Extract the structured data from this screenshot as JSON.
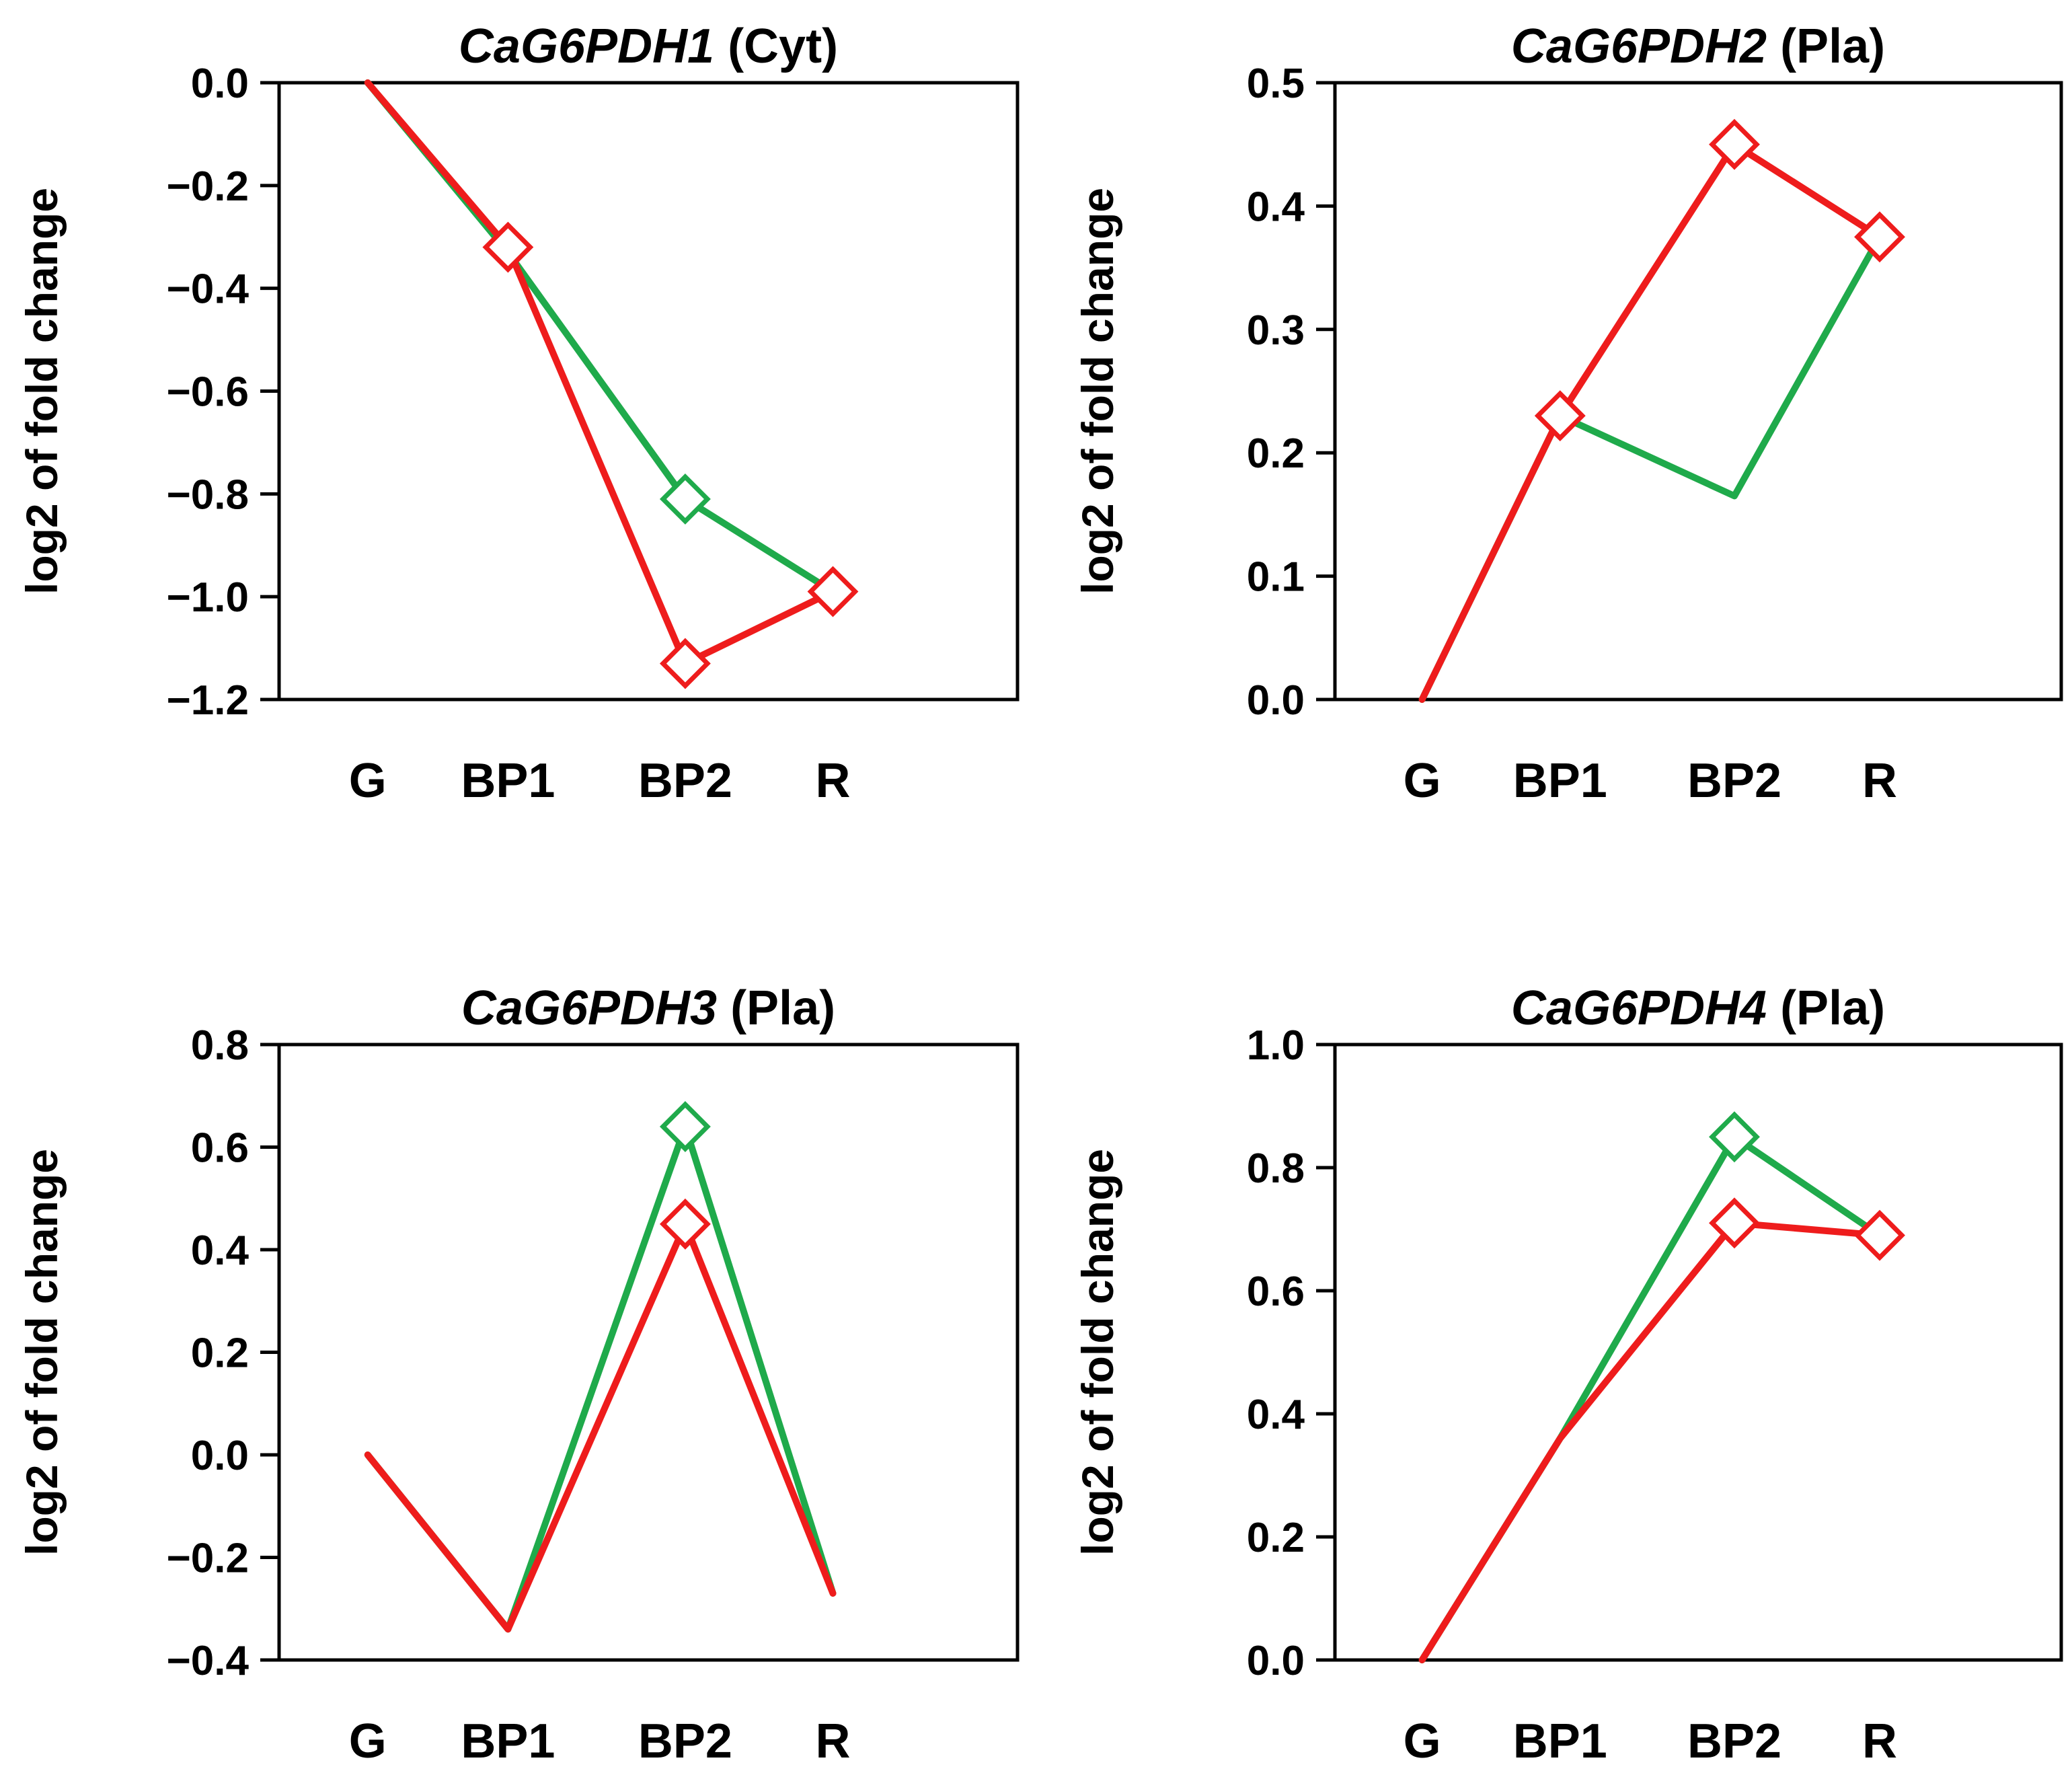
{
  "colors": {
    "red": "#ee1c1c",
    "green": "#1faa4b",
    "axis": "#000000"
  },
  "chart_data": [
    {
      "type": "line",
      "title_gene": "CaG6PDH1",
      "title_suffix": " (Cyt)",
      "xlabel": "",
      "ylabel": "log2 of fold change",
      "categories": [
        "G",
        "BP1",
        "BP2",
        "R"
      ],
      "ylim": [
        -1.2,
        0.0
      ],
      "yticks": [
        "0.0",
        "−0.2",
        "−0.4",
        "−0.6",
        "−0.8",
        "−1.0",
        "−1.2"
      ],
      "series": [
        {
          "name": "green",
          "color": "#1faa4b",
          "values": [
            0.0,
            -0.33,
            -0.81,
            -0.99
          ],
          "markers": [
            false,
            false,
            true,
            false
          ]
        },
        {
          "name": "red",
          "color": "#ee1c1c",
          "values": [
            0.0,
            -0.32,
            -1.13,
            -0.99
          ],
          "markers": [
            false,
            true,
            true,
            true
          ]
        }
      ]
    },
    {
      "type": "line",
      "title_gene": "CaG6PDH2",
      "title_suffix": " (Pla)",
      "xlabel": "",
      "ylabel": "log2 of fold change",
      "categories": [
        "G",
        "BP1",
        "BP2",
        "R"
      ],
      "ylim": [
        0.0,
        0.5
      ],
      "yticks": [
        "0.5",
        "0.4",
        "0.3",
        "0.2",
        "0.1",
        "0.0"
      ],
      "series": [
        {
          "name": "green",
          "color": "#1faa4b",
          "values": [
            0.0,
            0.23,
            0.165,
            0.375
          ],
          "markers": [
            false,
            false,
            false,
            false
          ]
        },
        {
          "name": "red",
          "color": "#ee1c1c",
          "values": [
            0.0,
            0.23,
            0.45,
            0.375
          ],
          "markers": [
            false,
            true,
            true,
            true
          ]
        }
      ]
    },
    {
      "type": "line",
      "title_gene": "CaG6PDH3",
      "title_suffix": " (Pla)",
      "xlabel": "",
      "ylabel": "log2 of fold change",
      "categories": [
        "G",
        "BP1",
        "BP2",
        "R"
      ],
      "ylim": [
        -0.4,
        0.8
      ],
      "yticks": [
        "0.8",
        "0.6",
        "0.4",
        "0.2",
        "0.0",
        "−0.2",
        "−0.4"
      ],
      "series": [
        {
          "name": "green",
          "color": "#1faa4b",
          "values": [
            0.0,
            -0.34,
            0.64,
            -0.27
          ],
          "markers": [
            false,
            false,
            true,
            false
          ]
        },
        {
          "name": "red",
          "color": "#ee1c1c",
          "values": [
            0.0,
            -0.34,
            0.45,
            -0.27
          ],
          "markers": [
            false,
            false,
            true,
            false
          ]
        }
      ]
    },
    {
      "type": "line",
      "title_gene": "CaG6PDH4",
      "title_suffix": " (Pla)",
      "xlabel": "",
      "ylabel": "log2 of fold change",
      "categories": [
        "G",
        "BP1",
        "BP2",
        "R"
      ],
      "ylim": [
        0.0,
        1.0
      ],
      "yticks": [
        "1.0",
        "0.8",
        "0.6",
        "0.4",
        "0.2",
        "0.0"
      ],
      "series": [
        {
          "name": "green",
          "color": "#1faa4b",
          "values": [
            0.0,
            0.36,
            0.85,
            0.69
          ],
          "markers": [
            false,
            false,
            true,
            false
          ]
        },
        {
          "name": "red",
          "color": "#ee1c1c",
          "values": [
            0.0,
            0.36,
            0.71,
            0.69
          ],
          "markers": [
            false,
            false,
            true,
            true
          ]
        }
      ]
    }
  ]
}
